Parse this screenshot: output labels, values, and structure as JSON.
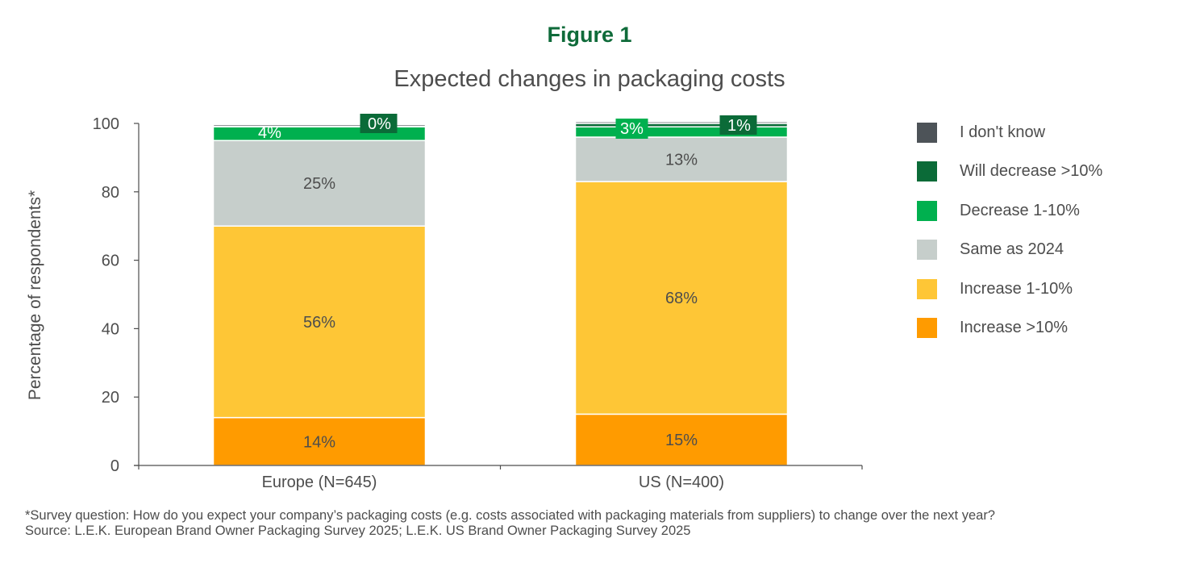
{
  "figure_label": "Figure 1",
  "chart_data": {
    "type": "bar",
    "stacked": true,
    "title": "Expected changes in packaging costs",
    "xlabel": "",
    "ylabel": "Percentage of respondents*",
    "ylim": [
      0,
      100
    ],
    "yticks": [
      "0",
      "20",
      "40",
      "60",
      "80",
      "100"
    ],
    "grid": false,
    "legend_position": "right",
    "categories": [
      "Europe (N=645)",
      "US (N=400)"
    ],
    "series": [
      {
        "name": "Increase >10%",
        "color": "#ff9b00",
        "values": [
          14,
          15
        ],
        "labels": [
          "14%",
          "15%"
        ]
      },
      {
        "name": "Increase 1-10%",
        "color": "#fec636",
        "values": [
          56,
          68
        ],
        "labels": [
          "56%",
          "68%"
        ]
      },
      {
        "name": "Same as 2024",
        "color": "#c6cecb",
        "values": [
          25,
          13
        ],
        "labels": [
          "25%",
          "13%"
        ]
      },
      {
        "name": "Decrease 1-10%",
        "color": "#00b04f",
        "values": [
          4,
          3
        ],
        "labels": [
          "4%",
          "3%"
        ]
      },
      {
        "name": "Will decrease >10%",
        "color": "#0b6b38",
        "values": [
          0.2,
          1
        ],
        "labels": [
          "0%",
          "1%"
        ]
      },
      {
        "name": "I don't know",
        "color": "#4d5358",
        "values": [
          0.5,
          0.5
        ],
        "labels": [
          "",
          ""
        ]
      }
    ]
  },
  "notes": {
    "survey_question": "*Survey question: How do you expect your company’s packaging costs (e.g. costs associated with packaging materials from suppliers) to change over the next year?",
    "source": "Source: L.E.K. European Brand Owner Packaging Survey 2025; L.E.K. US Brand Owner Packaging Survey 2025"
  }
}
